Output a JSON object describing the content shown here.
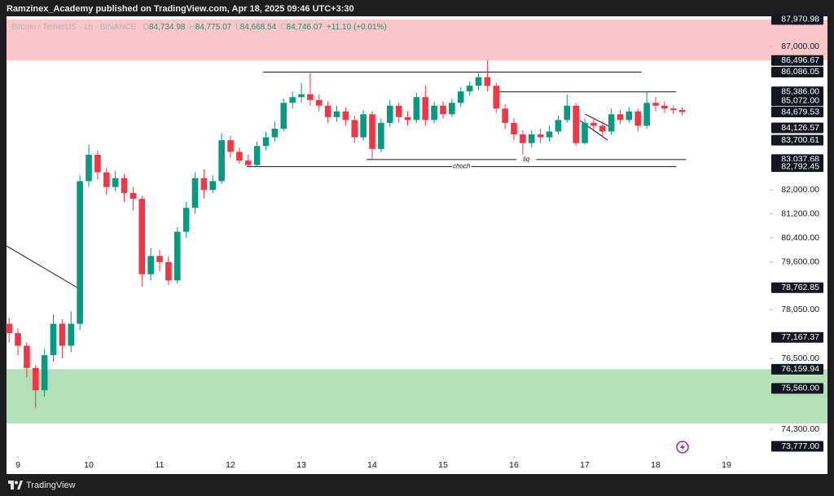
{
  "header": {
    "text": "Ramzinex_Academy published on TradingView.com, Apr 18, 2025 09:46 UTC+3:30"
  },
  "footer": {
    "brand": "TradingView"
  },
  "chart_data": {
    "type": "candlestick",
    "legend": {
      "symbol": "Bitcoin / TetherUS · 1h · BINANCE",
      "fields": [
        {
          "key": "O",
          "value": "84,734.98"
        },
        {
          "key": "H",
          "value": "84,775.07"
        },
        {
          "key": "L",
          "value": "84,668.54"
        },
        {
          "key": "C",
          "value": "84,746.07"
        }
      ],
      "change": "+11.10 (+0.01%)"
    },
    "x": [
      8.875,
      9,
      9.125,
      9.25,
      9.375,
      9.5,
      9.625,
      9.75,
      9.875,
      10,
      10.125,
      10.25,
      10.375,
      10.5,
      10.625,
      10.75,
      10.875,
      11,
      11.125,
      11.25,
      11.375,
      11.5,
      11.625,
      11.75,
      11.875,
      12,
      12.125,
      12.25,
      12.375,
      12.5,
      12.625,
      12.75,
      12.875,
      13,
      13.125,
      13.25,
      13.375,
      13.5,
      13.625,
      13.75,
      13.875,
      14,
      14.125,
      14.25,
      14.375,
      14.5,
      14.625,
      14.75,
      14.875,
      15,
      15.125,
      15.25,
      15.375,
      15.5,
      15.625,
      15.75,
      15.875,
      16,
      16.125,
      16.25,
      16.375,
      16.5,
      16.625,
      16.75,
      16.875,
      17,
      17.125,
      17.25,
      17.375,
      17.5,
      17.625,
      17.75,
      17.875,
      18,
      18.125,
      18.25,
      18.375
    ],
    "open": [
      77600,
      77300,
      76900,
      76200,
      75500,
      76600,
      77600,
      76900,
      77600,
      82300,
      83200,
      82600,
      82100,
      82400,
      81900,
      81700,
      79200,
      79800,
      79600,
      79000,
      80600,
      81400,
      82400,
      82000,
      82300,
      83700,
      83300,
      83000,
      82850,
      83500,
      83800,
      84100,
      85000,
      85200,
      85300,
      85100,
      84900,
      84500,
      84700,
      84400,
      83800,
      84600,
      83400,
      84300,
      84900,
      84500,
      84400,
      85200,
      84400,
      84900,
      84600,
      85000,
      85400,
      85600,
      85900,
      85600,
      84800,
      84300,
      83900,
      83600,
      83900,
      83800,
      84000,
      84400,
      84900,
      83600,
      84300,
      84200,
      84000,
      84600,
      84400,
      84700,
      84200,
      85000,
      84900,
      84800,
      84750
    ],
    "high": [
      77800,
      77450,
      77000,
      76300,
      76800,
      77900,
      77750,
      78000,
      82500,
      83550,
      83350,
      82750,
      82650,
      82550,
      82100,
      81800,
      80050,
      80000,
      79800,
      80750,
      81600,
      82600,
      82700,
      82500,
      83950,
      83850,
      83450,
      83200,
      83650,
      84000,
      84350,
      85150,
      85400,
      85700,
      86050,
      85300,
      85050,
      84900,
      84850,
      84550,
      84750,
      84700,
      84450,
      85100,
      85000,
      84700,
      85350,
      85600,
      85050,
      85050,
      85150,
      85550,
      85750,
      86050,
      86500,
      85700,
      84950,
      84450,
      84050,
      84050,
      84100,
      84200,
      84550,
      85300,
      85000,
      84450,
      84500,
      84350,
      84800,
      84750,
      84850,
      84800,
      85400,
      85200,
      85050,
      84900,
      84850
    ],
    "low": [
      77000,
      76600,
      75900,
      74950,
      75300,
      76400,
      76500,
      76700,
      77400,
      82100,
      82350,
      81850,
      81950,
      81600,
      81300,
      78800,
      79000,
      79300,
      78850,
      78900,
      80400,
      81200,
      81700,
      81900,
      82200,
      83100,
      82900,
      82790,
      82800,
      83350,
      83650,
      84000,
      84800,
      85000,
      84900,
      84700,
      84300,
      84350,
      84200,
      83600,
      83700,
      83040,
      83300,
      84150,
      84300,
      84200,
      84300,
      84200,
      84300,
      84450,
      84500,
      84850,
      85250,
      85450,
      85400,
      84650,
      84100,
      83700,
      83200,
      83450,
      83600,
      83650,
      83900,
      84300,
      83500,
      83550,
      84000,
      83800,
      83900,
      84250,
      84300,
      84000,
      84100,
      84700,
      84650,
      84600,
      84550
    ],
    "close": [
      77300,
      76900,
      76200,
      75500,
      76600,
      77600,
      76900,
      77600,
      82300,
      83200,
      82600,
      82100,
      82400,
      81900,
      81700,
      79200,
      79800,
      79600,
      79000,
      80600,
      81400,
      82400,
      82000,
      82300,
      83700,
      83300,
      83000,
      82850,
      83500,
      83800,
      84100,
      85000,
      85200,
      85300,
      85100,
      84900,
      84500,
      84700,
      84400,
      83800,
      84600,
      83400,
      84300,
      84900,
      84500,
      84400,
      85200,
      84400,
      84900,
      84600,
      85000,
      85400,
      85600,
      85900,
      85600,
      84800,
      84300,
      83900,
      83600,
      83900,
      83800,
      84000,
      84400,
      84900,
      83600,
      84300,
      84200,
      84000,
      84600,
      84400,
      84700,
      84200,
      85000,
      84900,
      84800,
      84750,
      84680
    ],
    "up_color": "#089981",
    "down_color": "#f23645",
    "log_scale": true,
    "grid": false,
    "xlim": [
      8.839,
      19.609
    ],
    "xticks": [
      9,
      10,
      11,
      12,
      13,
      14,
      15,
      16,
      17,
      18,
      19
    ],
    "ylim": [
      73481,
      88087
    ],
    "yticks": [
      {
        "value": 87000,
        "label": "87,000.00"
      },
      {
        "value": 82000,
        "label": "82,000.00"
      },
      {
        "value": 81200,
        "label": "81,200.00"
      },
      {
        "value": 80400,
        "label": "80,400.00"
      },
      {
        "value": 79600,
        "label": "79,600.00"
      },
      {
        "value": 78050,
        "label": "78,050.00"
      },
      {
        "value": 76500,
        "label": "76,500.00"
      },
      {
        "value": 74300,
        "label": "74,300.00"
      }
    ],
    "zones": [
      {
        "color": "#fcc5c8",
        "from": 86496.67,
        "to": 87970.98
      },
      {
        "color": "#b5e0b7",
        "from": 74475,
        "to": 76159.94
      }
    ],
    "lines": [
      {
        "x": [
          12.46,
          17.8
        ],
        "y": [
          86086.05,
          86086.05
        ]
      },
      {
        "x": [
          15.72,
          18.29
        ],
        "y": [
          85386,
          85386
        ]
      },
      {
        "x": [
          13.92,
          18.43
        ],
        "y": [
          83037.68,
          83037.68
        ],
        "label": "liq"
      },
      {
        "x": [
          12.23,
          18.29
        ],
        "y": [
          82792.45,
          82792.45
        ],
        "label": "choch"
      },
      {
        "x": [
          8.839,
          9.84
        ],
        "y": [
          80130,
          78762.85
        ]
      },
      {
        "x": [
          17.0,
          17.345
        ],
        "y": [
          84609,
          84179
        ]
      },
      {
        "x": [
          16.931,
          17.322
        ],
        "y": [
          84379,
          83702
        ]
      }
    ],
    "price_labels": [
      {
        "value": 87970.98,
        "label": "87,970.98"
      },
      {
        "value": 86496.67,
        "label": "86,496.67"
      },
      {
        "value": 86086.05,
        "label": "86,086.05"
      },
      {
        "value": 85386,
        "label": "85,386.00"
      },
      {
        "value": 85072,
        "label": "85,072.00"
      },
      {
        "value": 84679.53,
        "label": "84,679.53"
      },
      {
        "value": 84126.57,
        "label": "84,126.57"
      },
      {
        "value": 83700.61,
        "label": "83,700.61"
      },
      {
        "value": 83037.68,
        "label": "83,037.68"
      },
      {
        "value": 82792.45,
        "label": "82,792.45"
      },
      {
        "value": 78762.85,
        "label": "78,762.85"
      },
      {
        "value": 77167.37,
        "label": "77,167.37"
      },
      {
        "value": 76159.94,
        "label": "76,159.94"
      },
      {
        "value": 75560,
        "label": "75,560.00"
      },
      {
        "value": 73777,
        "label": "73,777.00"
      }
    ]
  }
}
